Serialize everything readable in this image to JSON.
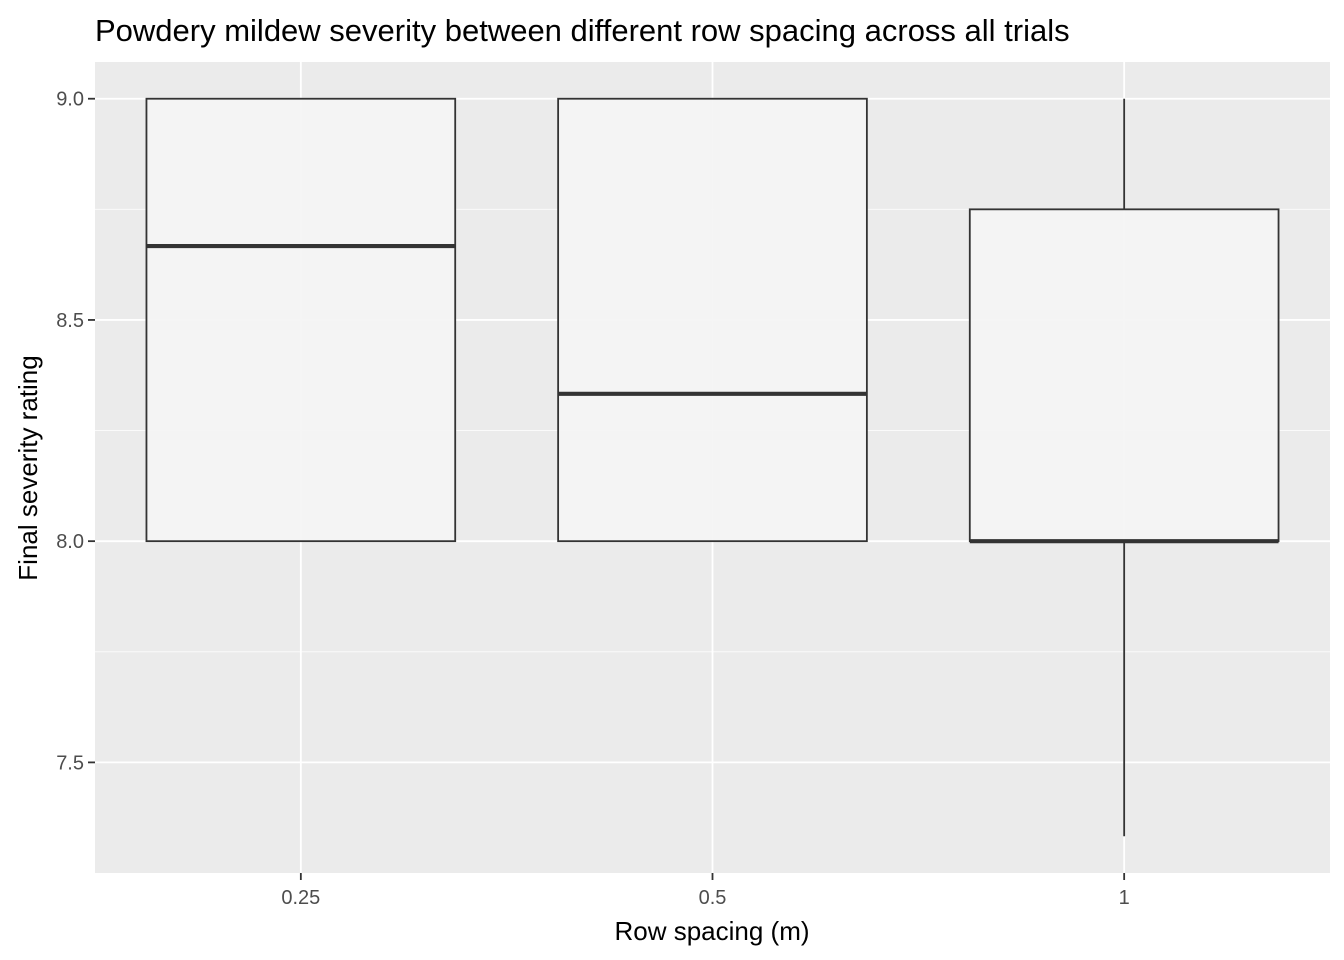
{
  "chart_data": {
    "type": "box",
    "title": "Powdery mildew severity between different row spacing across all trials",
    "xlabel": "Row spacing (m)",
    "ylabel": "Final severity rating",
    "categories": [
      "0.25",
      "0.5",
      "1"
    ],
    "boxes": [
      {
        "category": "0.25",
        "min": 8.0,
        "q1": 8.0,
        "median": 8.667,
        "q3": 9.0,
        "max": 9.0
      },
      {
        "category": "0.5",
        "min": 8.0,
        "q1": 8.0,
        "median": 8.333,
        "q3": 9.0,
        "max": 9.0
      },
      {
        "category": "1",
        "min": 7.333,
        "q1": 8.0,
        "median": 8.0,
        "q3": 8.75,
        "max": 9.0
      }
    ],
    "ylim": [
      7.25,
      9.083
    ],
    "yticks": [
      7.5,
      8.0,
      8.5,
      9.0
    ],
    "ytick_labels": [
      "7.5",
      "8.0",
      "8.5",
      "9.0"
    ],
    "grid": true,
    "legend": "none",
    "colors": {
      "panel_background": "#EBEBEB",
      "grid_major": "#FFFFFF",
      "box_fill": "#F4F4F4",
      "box_line": "#333333"
    }
  }
}
